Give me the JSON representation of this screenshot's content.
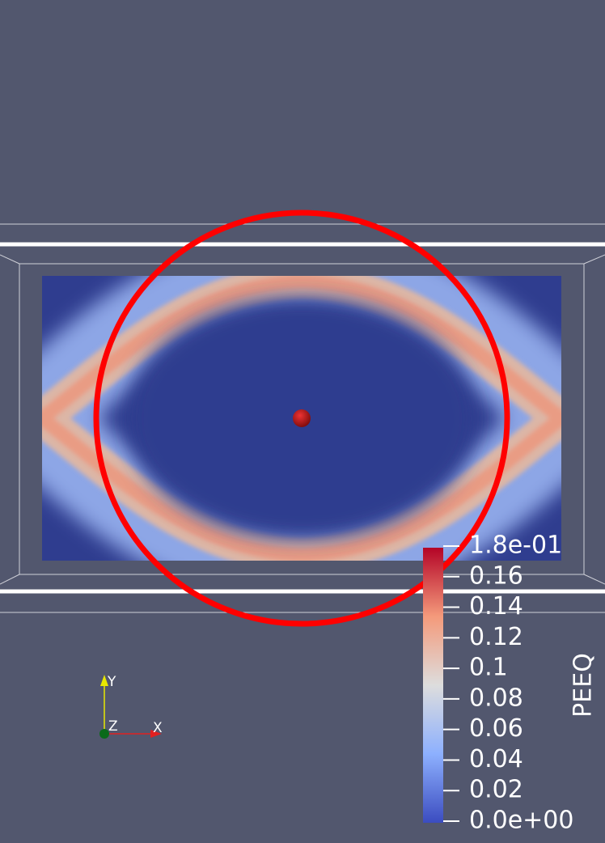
{
  "colorbar": {
    "title": "PEEQ",
    "range": [
      0,
      0.18
    ],
    "ticks": [
      {
        "value": 0,
        "label": "0.0e+00"
      },
      0.02,
      0.04,
      0.06,
      0.08,
      0.1,
      0.12,
      0.14,
      0.16,
      {
        "value": 0.18,
        "label": "1.8e-01"
      }
    ]
  },
  "axes": {
    "x": "X",
    "y": "Y",
    "z": "Z"
  }
}
